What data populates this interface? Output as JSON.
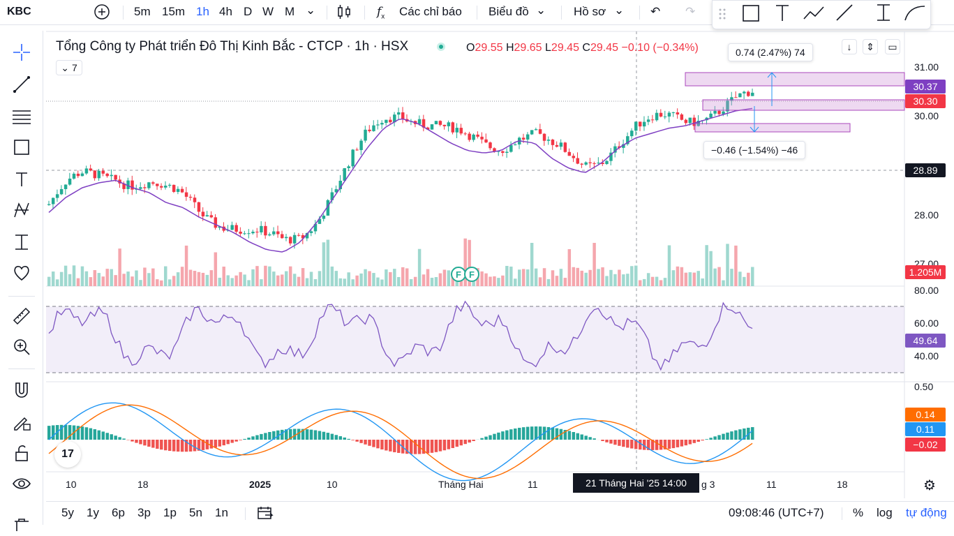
{
  "symbol": "KBC",
  "toolbar": {
    "intervals": [
      "5m",
      "15m",
      "1h",
      "4h",
      "D",
      "W",
      "M"
    ],
    "active_interval": "1h",
    "indicators_label": "Các chỉ báo",
    "chart_label": "Biểu đồ",
    "profile_label": "Hồ sơ"
  },
  "title": "Tổng Công ty Phát triển Đô Thị Kinh Bắc - CTCP · 1h · HSX",
  "ohlc": {
    "o_label": "O",
    "o": "29.55",
    "h_label": "H",
    "h": "29.65",
    "l_label": "L",
    "l": "29.45",
    "c_label": "C",
    "c": "29.45",
    "change": "−0.10 (−0.34%)"
  },
  "indicator_count": "7",
  "measure_up": "0.74 (2.47%) 74",
  "measure_down": "−0.46 (−1.54%) −46",
  "price_axis": [
    "31.00",
    "30.00",
    "28.00",
    "27.00"
  ],
  "price_tags": {
    "p1": "30.37",
    "p2": "30.30",
    "cross": "28.89",
    "volume": "1.205M"
  },
  "rsi_axis": [
    "80.00",
    "60.00",
    "40.00"
  ],
  "rsi_tag": "49.64",
  "macd_axis": [
    "0.50"
  ],
  "macd_tags": {
    "a": "0.14",
    "b": "0.11",
    "c": "−0.02"
  },
  "time_axis": [
    "10",
    "18",
    "2025",
    "10",
    "Tháng Hai",
    "11",
    "g 3",
    "11",
    "18"
  ],
  "crosshair_time": "21 Tháng Hai '25   14:00",
  "bottom": {
    "ranges": [
      "5y",
      "1y",
      "6p",
      "3p",
      "1p",
      "5n",
      "1n"
    ],
    "clock": "09:08:46 (UTC+7)",
    "percent": "%",
    "log": "log",
    "auto": "tự động"
  },
  "earnings_markers": [
    "F",
    "F"
  ],
  "colors": {
    "up": "#22ab94",
    "down": "#f23645",
    "ma": "#7e3fc2",
    "rsi": "#7e57c2",
    "macd": "#2196f3",
    "signal": "#ff6d00",
    "accent": "#2962ff"
  },
  "chart_data": {
    "type": "candlestick",
    "price_ylim": [
      27.0,
      31.2
    ],
    "ma_series": [
      28.1,
      28.4,
      28.6,
      28.7,
      28.75,
      28.6,
      28.5,
      28.3,
      28.2,
      28.0,
      27.85,
      27.7,
      27.5,
      27.35,
      27.3,
      27.5,
      27.9,
      28.4,
      28.9,
      29.4,
      29.8,
      30.0,
      29.9,
      29.7,
      29.5,
      29.35,
      29.3,
      29.35,
      29.55,
      29.5,
      29.2,
      29.0,
      28.9,
      29.1,
      29.4,
      29.6,
      29.7,
      29.8,
      29.85,
      29.95,
      30.05,
      30.15,
      30.2
    ]
  }
}
